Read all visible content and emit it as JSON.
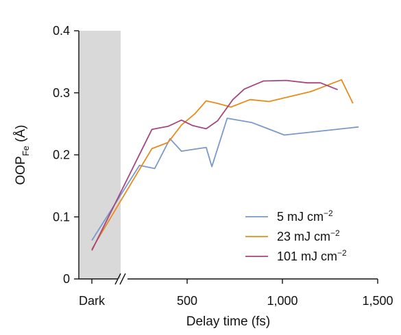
{
  "chart_data": {
    "type": "line",
    "xlabel": "Delay time (fs)",
    "ylabel": "OOP",
    "ylabel_sub": "Fe",
    "ylabel_unit": " (Å)",
    "ylim": [
      0,
      0.4
    ],
    "xlim": [
      0,
      1500
    ],
    "x_ticks": [
      500,
      1000,
      1500
    ],
    "x_tick_labels": [
      "500",
      "1,000",
      "1,500"
    ],
    "y_ticks": [
      0,
      0.1,
      0.2,
      0.3,
      0.4
    ],
    "y_tick_labels": [
      "0",
      "0.1",
      "0.2",
      "0.3",
      "0.4"
    ],
    "dark_label": "Dark",
    "dark_region_color": "#d9d9d9",
    "axis_break": true,
    "legend_position": "lower-right",
    "series": [
      {
        "name": "5 mJ cm",
        "name_sup": "−2",
        "color": "#7a98c9",
        "dark_value": 0.062,
        "x": [
          250,
          330,
          410,
          470,
          600,
          630,
          710,
          840,
          1010,
          1400
        ],
        "y": [
          0.183,
          0.178,
          0.226,
          0.206,
          0.212,
          0.181,
          0.259,
          0.252,
          0.232,
          0.245
        ]
      },
      {
        "name": "23 mJ cm",
        "name_sup": "−2",
        "color": "#e88b1a",
        "dark_value": 0.048,
        "x": [
          315,
          400,
          470,
          540,
          600,
          660,
          730,
          830,
          930,
          1150,
          1310,
          1370
        ],
        "y": [
          0.21,
          0.22,
          0.248,
          0.266,
          0.287,
          0.283,
          0.277,
          0.289,
          0.286,
          0.302,
          0.321,
          0.283
        ]
      },
      {
        "name": "101 mJ cm",
        "name_sup": "−2",
        "color": "#a6457e",
        "dark_value": 0.046,
        "x": [
          315,
          400,
          470,
          530,
          600,
          660,
          740,
          800,
          900,
          1020,
          1130,
          1200,
          1290
        ],
        "y": [
          0.241,
          0.246,
          0.256,
          0.247,
          0.242,
          0.255,
          0.289,
          0.306,
          0.319,
          0.32,
          0.316,
          0.316,
          0.305
        ]
      }
    ]
  }
}
